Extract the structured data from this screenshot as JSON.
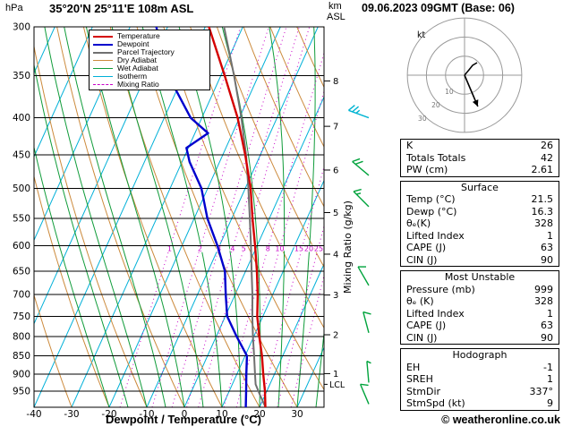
{
  "header": {
    "left_units": "hPa",
    "station": "35°20'N 25°11'E 108m ASL",
    "km_label": "km",
    "asl_label": "ASL",
    "datetime": "09.06.2023 09GMT (Base: 06)"
  },
  "footer": {
    "xlabel": "Dewpoint / Temperature (°C)",
    "copyright": "© weatheronline.co.uk"
  },
  "side_axis": {
    "mixing_label": "Mixing Ratio (g/kg)",
    "lcl_label": "LCL"
  },
  "legend": [
    {
      "label": "Temperature",
      "color": "#d40000",
      "thick": 2.5,
      "dash": false
    },
    {
      "label": "Dewpoint",
      "color": "#0000cd",
      "thick": 2.5,
      "dash": false
    },
    {
      "label": "Parcel Trajectory",
      "color": "#707070",
      "thick": 2,
      "dash": false
    },
    {
      "label": "Dry Adiabat",
      "color": "#cc8a3c",
      "thick": 1,
      "dash": false
    },
    {
      "label": "Wet Adiabat",
      "color": "#109c3a",
      "thick": 1,
      "dash": false
    },
    {
      "label": "Isotherm",
      "color": "#00b0d8",
      "thick": 1,
      "dash": false
    },
    {
      "label": "Mixing Ratio",
      "color": "#c800c8",
      "thick": 1,
      "dash": true
    }
  ],
  "stats": {
    "indices": {
      "rows": [
        [
          "K",
          "26"
        ],
        [
          "Totals Totals",
          "42"
        ],
        [
          "PW (cm)",
          "2.61"
        ]
      ]
    },
    "surface": {
      "title": "Surface",
      "rows": [
        [
          "Temp (°C)",
          "21.5"
        ],
        [
          "Dewp (°C)",
          "16.3"
        ],
        [
          "θₑ(K)",
          "328"
        ],
        [
          "Lifted Index",
          "1"
        ],
        [
          "CAPE (J)",
          "63"
        ],
        [
          "CIN (J)",
          "90"
        ]
      ]
    },
    "most_unstable": {
      "title": "Most Unstable",
      "rows": [
        [
          "Pressure (mb)",
          "999"
        ],
        [
          "θₑ (K)",
          "328"
        ],
        [
          "Lifted Index",
          "1"
        ],
        [
          "CAPE (J)",
          "63"
        ],
        [
          "CIN (J)",
          "90"
        ]
      ]
    },
    "hodograph": {
      "title": "Hodograph",
      "rows": [
        [
          "EH",
          "-1"
        ],
        [
          "SREH",
          "1"
        ],
        [
          "StmDir",
          "337°"
        ],
        [
          "StmSpd (kt)",
          "9"
        ]
      ]
    }
  },
  "chart_data": {
    "type": "skewt",
    "pressure_range": [
      300,
      1000
    ],
    "pressure_ticks": [
      300,
      350,
      400,
      450,
      500,
      550,
      600,
      650,
      700,
      750,
      800,
      850,
      900,
      950
    ],
    "temp_ticks": [
      -40,
      -30,
      -20,
      -10,
      0,
      10,
      20,
      30
    ],
    "km_ticks": [
      {
        "km": 8,
        "p": 356
      },
      {
        "km": 7,
        "p": 411
      },
      {
        "km": 6,
        "p": 472
      },
      {
        "km": 5,
        "p": 540
      },
      {
        "km": 4,
        "p": 616
      },
      {
        "km": 3,
        "p": 701
      },
      {
        "km": 2,
        "p": 795
      },
      {
        "km": 1,
        "p": 899
      }
    ],
    "lcl": {
      "p": 930
    },
    "mixing_ratio_lines": [
      1,
      2,
      3,
      4,
      5,
      8,
      10,
      15,
      20,
      25
    ],
    "colors": {
      "temperature": "#d40000",
      "dewpoint": "#0000cd",
      "parcel": "#707070",
      "dry_adiabat": "#cc8a3c",
      "wet_adiabat": "#109c3a",
      "isotherm": "#00b0d8",
      "mixing_ratio": "#c800c8",
      "barb_green": "#00a33c",
      "barb_cyan": "#00b4d2"
    },
    "profiles": {
      "temperature": [
        [
          999,
          21.5
        ],
        [
          950,
          19.5
        ],
        [
          900,
          17
        ],
        [
          850,
          14.5
        ],
        [
          800,
          11.5
        ],
        [
          750,
          8.5
        ],
        [
          700,
          6
        ],
        [
          650,
          3
        ],
        [
          600,
          -0.5
        ],
        [
          550,
          -4.5
        ],
        [
          500,
          -8.6
        ],
        [
          450,
          -14
        ],
        [
          400,
          -20.5
        ],
        [
          350,
          -29
        ],
        [
          300,
          -39
        ]
      ],
      "dewpoint": [
        [
          999,
          16.3
        ],
        [
          950,
          14.5
        ],
        [
          900,
          12.5
        ],
        [
          850,
          10.5
        ],
        [
          800,
          5.5
        ],
        [
          750,
          0.5
        ],
        [
          700,
          -2.5
        ],
        [
          650,
          -5.5
        ],
        [
          600,
          -10.5
        ],
        [
          550,
          -16.5
        ],
        [
          500,
          -21.7
        ],
        [
          460,
          -28
        ],
        [
          440,
          -30.5
        ],
        [
          420,
          -26.5
        ],
        [
          400,
          -33
        ],
        [
          350,
          -44
        ],
        [
          300,
          -53
        ]
      ],
      "parcel": [
        [
          999,
          21.5
        ],
        [
          960,
          18.5
        ],
        [
          930,
          16.2
        ],
        [
          900,
          14.8
        ],
        [
          850,
          12.4
        ],
        [
          800,
          9.8
        ],
        [
          750,
          7.2
        ],
        [
          700,
          4.6
        ],
        [
          650,
          1.6
        ],
        [
          600,
          -1.6
        ],
        [
          550,
          -5.2
        ],
        [
          500,
          -9.2
        ],
        [
          450,
          -13.8
        ],
        [
          400,
          -19.5
        ],
        [
          350,
          -26.5
        ],
        [
          300,
          -35
        ]
      ]
    },
    "wind_barbs": [
      {
        "p": 400,
        "speed": 25,
        "dir": 290,
        "color": "cyan"
      },
      {
        "p": 480,
        "speed": 20,
        "dir": 310,
        "color": "green"
      },
      {
        "p": 530,
        "speed": 15,
        "dir": 315,
        "color": "green"
      },
      {
        "p": 680,
        "speed": 10,
        "dir": 330,
        "color": "green"
      },
      {
        "p": 790,
        "speed": 10,
        "dir": 345,
        "color": "green"
      },
      {
        "p": 925,
        "speed": 5,
        "dir": 355,
        "color": "green"
      },
      {
        "p": 990,
        "speed": 9,
        "dir": 337,
        "color": "green"
      }
    ],
    "hodograph": {
      "unit_label": "kt",
      "ring_speeds": [
        10,
        20,
        30
      ],
      "storm_vector": {
        "dir_deg": 337,
        "speed_kt": 9
      },
      "trace": [
        [
          0,
          0
        ],
        [
          5,
          -6
        ],
        [
          9,
          -11
        ],
        [
          14,
          -14
        ]
      ]
    }
  }
}
